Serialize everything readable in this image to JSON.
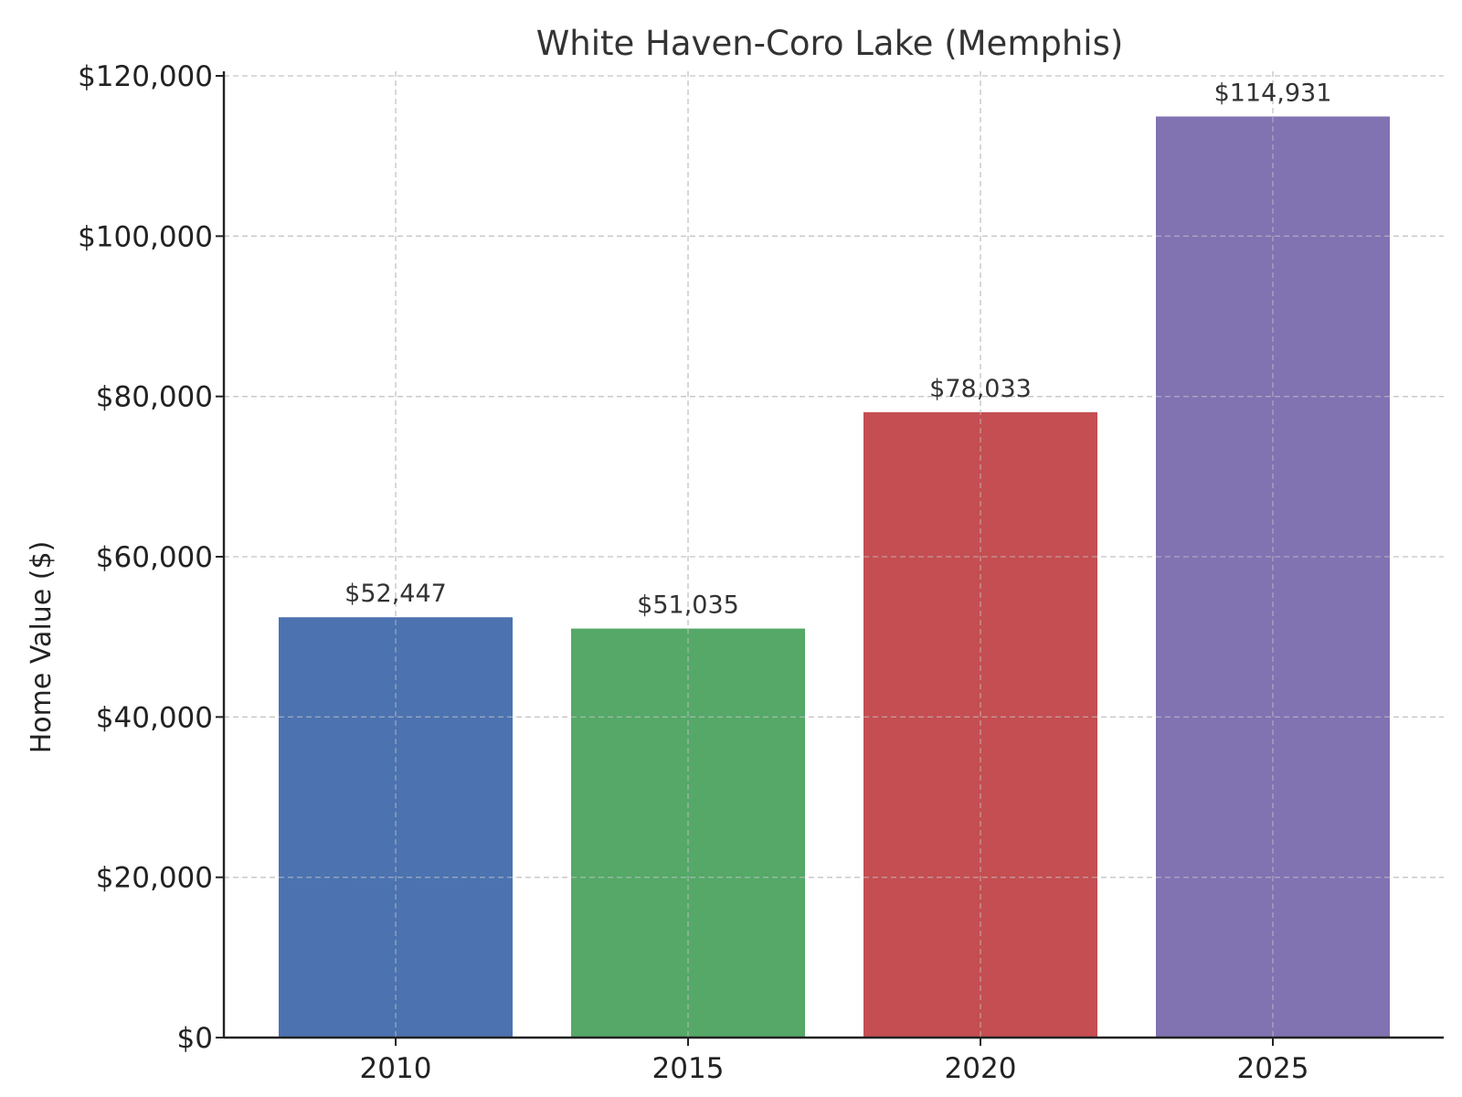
{
  "chart_data": {
    "type": "bar",
    "title": "White Haven-Coro Lake (Memphis)",
    "xlabel": "",
    "ylabel": "Home Value ($)",
    "categories": [
      "2010",
      "2015",
      "2020",
      "2025"
    ],
    "values": [
      52447,
      51035,
      78033,
      114931
    ],
    "value_labels": [
      "$52,447",
      "$51,035",
      "$78,033",
      "$114,931"
    ],
    "colors": [
      "#4c72b0",
      "#55a868",
      "#c44e52",
      "#8172b2"
    ],
    "ylim": [
      0,
      120000
    ],
    "yticks": [
      0,
      20000,
      40000,
      60000,
      80000,
      100000,
      120000
    ],
    "ytick_labels": [
      "$0",
      "$20,000",
      "$40,000",
      "$60,000",
      "$80,000",
      "$100,000",
      "$120,000"
    ],
    "grid": true,
    "legend": "none"
  }
}
